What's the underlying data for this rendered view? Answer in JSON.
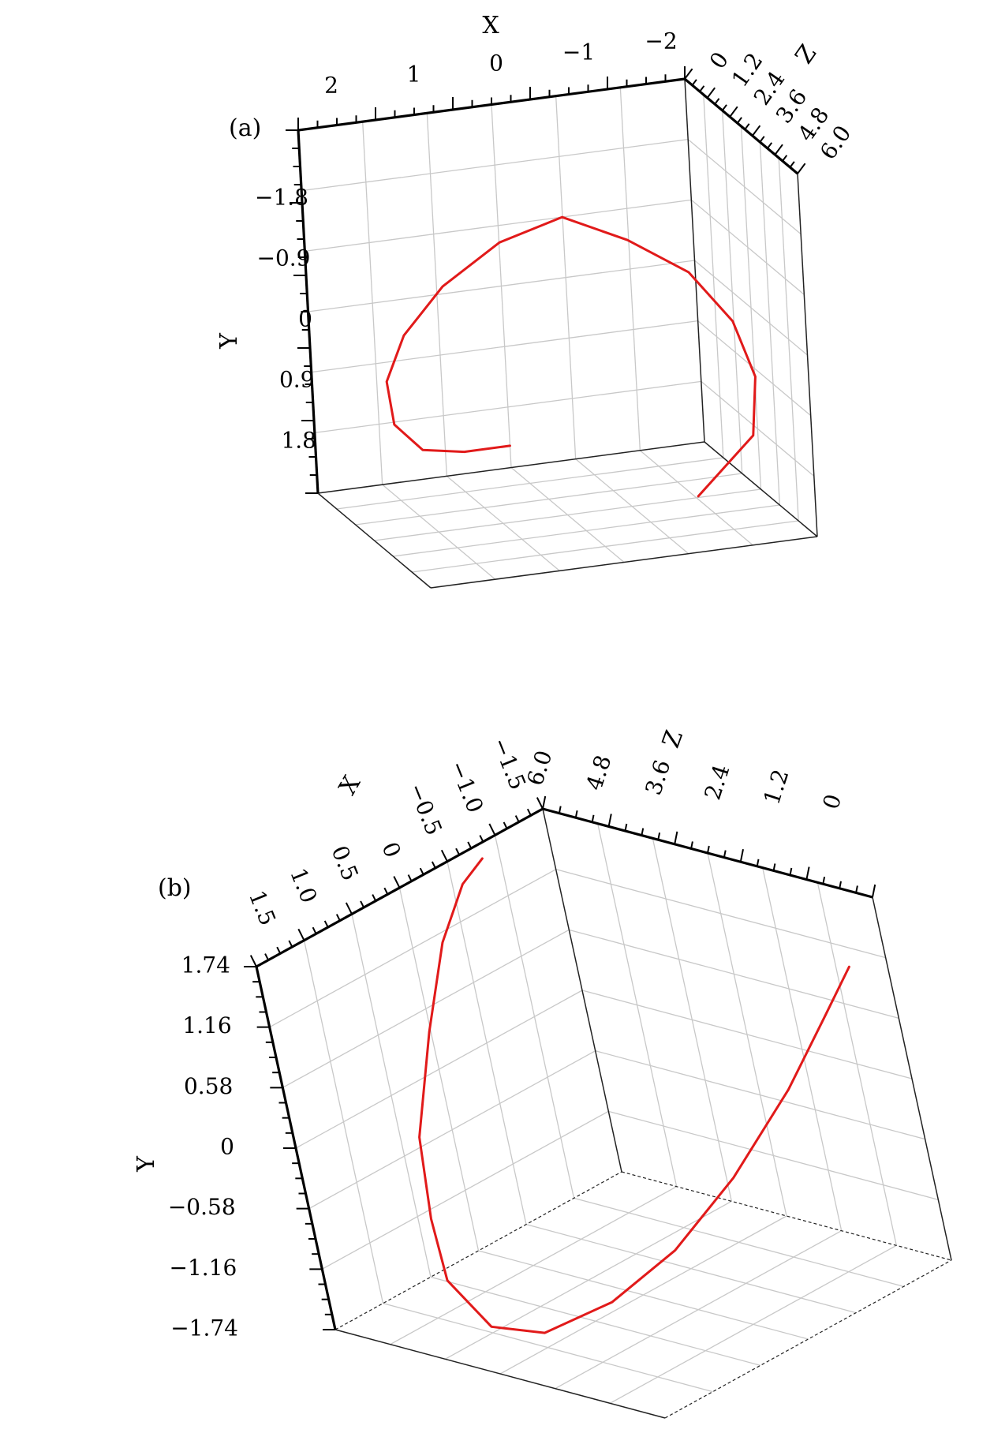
{
  "chart_data": [
    {
      "panel": "(a)",
      "type": "line3d",
      "x_label": "X",
      "y_label": "Y",
      "z_label": "Z",
      "x_ticks": [
        "2",
        "1",
        "0",
        "−1",
        "−2"
      ],
      "y_ticks": [
        "−1.8",
        "−0.9",
        "0",
        "0.9",
        "1.8"
      ],
      "z_ticks": [
        "0",
        "1.2",
        "2.4",
        "3.6",
        "4.8",
        "6.0"
      ],
      "xlim": [
        2.5,
        -2.5
      ],
      "ylim": [
        -2.5,
        2.5
      ],
      "zlim": [
        0,
        6
      ],
      "grid": true,
      "series": [
        {
          "color": "#e11a1a",
          "x": [
            -1.0,
            -1.84,
            -2.0,
            -1.84,
            -1.4,
            -0.73,
            0.0,
            0.73,
            1.4,
            1.84,
            2.0,
            1.84,
            1.4,
            0.73,
            0.0
          ],
          "y": [
            1.732,
            1.1,
            0.4,
            -0.3,
            -0.95,
            -1.4,
            -1.732,
            -1.4,
            -0.8,
            -0.1,
            0.6,
            1.3,
            1.8,
            2.05,
            2.2
          ],
          "z": [
            0,
            0.4,
            0.8,
            1.2,
            1.6,
            2.0,
            2.4,
            2.8,
            3.2,
            3.6,
            4.0,
            4.4,
            4.8,
            5.4,
            6.0
          ]
        }
      ]
    },
    {
      "panel": "(b)",
      "type": "line3d",
      "x_label": "X",
      "y_label": "Y",
      "z_label": "Z",
      "x_ticks": [
        "1.5",
        "1.0",
        "0.5",
        "0",
        "−0.5",
        "−1.0",
        "−1.5"
      ],
      "y_ticks": [
        "1.74",
        "1.16",
        "0.58",
        "0",
        "−0.58",
        "−1.16",
        "−1.74"
      ],
      "z_ticks": [
        "6.0",
        "4.8",
        "3.6",
        "2.4",
        "1.2",
        "0"
      ],
      "xlim": [
        1.8,
        -1.8
      ],
      "ylim": [
        1.74,
        -1.74
      ],
      "zlim": [
        6,
        0
      ],
      "grid": true,
      "series": [
        {
          "color": "#e11a1a",
          "x": [
            -1.0,
            -0.6,
            0.0,
            0.6,
            1.2,
            1.5,
            1.7,
            1.55,
            1.2,
            0.6,
            0.0,
            -0.6,
            -1.2,
            -1.5,
            -1.6
          ],
          "y": [
            1.6,
            1.55,
            1.3,
            0.75,
            0.05,
            -0.55,
            -1.0,
            -1.45,
            -1.6,
            -1.5,
            -1.2,
            -0.7,
            -0.05,
            0.6,
            1.1
          ],
          "z": [
            6.0,
            5.8,
            5.4,
            5.0,
            4.6,
            4.2,
            3.8,
            3.4,
            3.0,
            2.6,
            2.2,
            1.8,
            1.4,
            0.9,
            0.4
          ]
        }
      ]
    }
  ]
}
